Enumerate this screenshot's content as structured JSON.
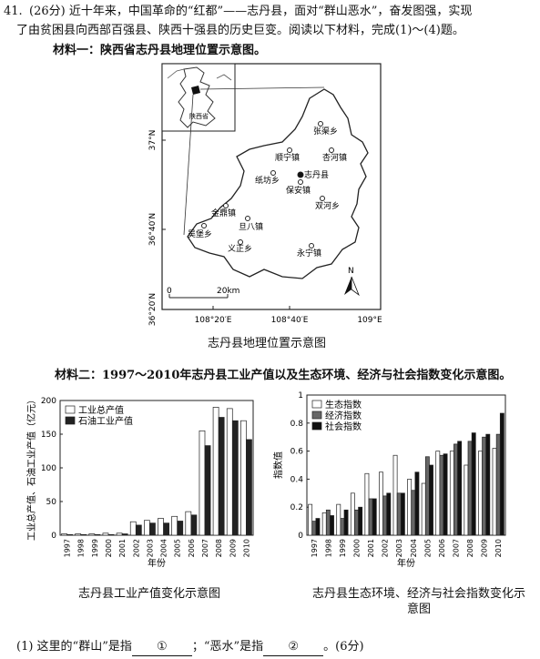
{
  "question": {
    "number": "41.",
    "line1": "(26分) 近十年来，中国革命的“红都”——志丹县，面对“群山恶水”，奋发图强，实现",
    "line2": "了由贫困县向西部百强县、陕西十强县的历史巨变。阅读以下材料，完成(1)～(4)题。"
  },
  "material1": {
    "title": "材料一：陕西省志丹县地理位置示意图。",
    "caption": "志丹县地理位置示意图",
    "inset_label": "陕西省",
    "county_label": "志丹县",
    "scale_zero": "0",
    "scale_text": "20km",
    "north": "N",
    "lat_labels": [
      "37°N",
      "36°40′N",
      "36°20′N"
    ],
    "lon_labels": [
      "108°20′E",
      "108°40′E",
      "109°E"
    ],
    "places": [
      "张渠乡",
      "顺宁镇",
      "杏河镇",
      "纸坊乡",
      "保安镇",
      "双河乡",
      "金鼎镇",
      "旦八镇",
      "吴堡乡",
      "义正乡",
      "永宁镇"
    ]
  },
  "material2": {
    "title": "材料二：1997～2010年志丹县工业产值以及生态环境、经济与社会指数变化示意图。"
  },
  "chart_data": [
    {
      "type": "bar",
      "title": "",
      "caption": "志丹县工业产值变化示意图",
      "xlabel": "年份",
      "ylabel": "工业总产值、石油工业产值（亿元）",
      "ylim": [
        0,
        200
      ],
      "yticks": [
        0,
        50,
        100,
        150,
        200
      ],
      "categories": [
        "1997",
        "1998",
        "1999",
        "2000",
        "2001",
        "2002",
        "2003",
        "2004",
        "2005",
        "2006",
        "2007",
        "2008",
        "2009",
        "2010"
      ],
      "series": [
        {
          "name": "工业总产值",
          "color": "#ffffff",
          "values": [
            2,
            2,
            2,
            3,
            3,
            20,
            22,
            25,
            28,
            35,
            155,
            190,
            188,
            170
          ]
        },
        {
          "name": "石油工业产值",
          "color": "#222222",
          "values": [
            1,
            1,
            1,
            1,
            2,
            15,
            18,
            18,
            21,
            30,
            133,
            175,
            170,
            142
          ]
        }
      ]
    },
    {
      "type": "bar",
      "title": "",
      "caption": "志丹县生态环境、经济与社会指数变化示意图",
      "xlabel": "年份",
      "ylabel": "指数值",
      "ylim": [
        0,
        1.0
      ],
      "yticks": [
        0,
        0.2,
        0.4,
        0.6,
        0.8,
        1.0
      ],
      "categories": [
        "1997",
        "1998",
        "1999",
        "2000",
        "2001",
        "2002",
        "2003",
        "2004",
        "2005",
        "2006",
        "2007",
        "2008",
        "2009",
        "2010"
      ],
      "series": [
        {
          "name": "生态指数",
          "color": "#ffffff",
          "values": [
            0.22,
            0.16,
            0.22,
            0.3,
            0.44,
            0.45,
            0.57,
            0.4,
            0.37,
            0.6,
            0.6,
            0.5,
            0.6,
            0.62
          ]
        },
        {
          "name": "经济指数",
          "color": "#666666",
          "values": [
            0.1,
            0.18,
            0.12,
            0.18,
            0.26,
            0.28,
            0.3,
            0.32,
            0.56,
            0.57,
            0.65,
            0.67,
            0.7,
            0.72
          ]
        },
        {
          "name": "社会指数",
          "color": "#111111",
          "values": [
            0.12,
            0.14,
            0.18,
            0.2,
            0.26,
            0.3,
            0.3,
            0.45,
            0.5,
            0.58,
            0.67,
            0.73,
            0.72,
            0.87
          ]
        }
      ]
    }
  ],
  "sub_question": {
    "text": "(1) 这里的“群山”是指",
    "blank1": "①",
    "mid": "；“恶水”是指",
    "blank2": "②",
    "end": "。(6分)"
  }
}
